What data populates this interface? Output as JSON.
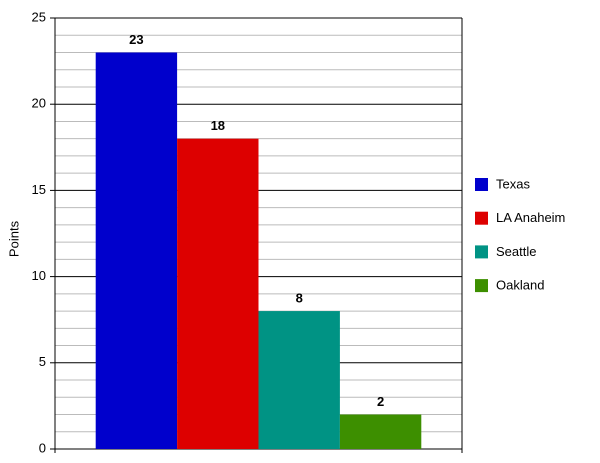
{
  "chart_data": {
    "type": "bar",
    "y_label": "Points",
    "categories": [
      null
    ],
    "series": [
      {
        "name": "Texas",
        "color": "#0000cc",
        "values": [
          23
        ]
      },
      {
        "name": "LA Anaheim",
        "color": "#dd0000",
        "values": [
          18
        ]
      },
      {
        "name": "Seattle",
        "color": "#009384",
        "values": [
          8
        ]
      },
      {
        "name": "Oakland",
        "color": "#3d8f00",
        "values": [
          2
        ]
      }
    ],
    "ylim": [
      0,
      25
    ],
    "yticks": [
      0,
      5,
      10,
      15,
      20,
      25
    ],
    "minor_yticks": [
      1,
      2,
      3,
      4,
      6,
      7,
      8,
      9,
      11,
      12,
      13,
      14,
      16,
      17,
      18,
      19,
      21,
      22,
      23,
      24
    ],
    "grid": true,
    "legend": "right",
    "data_labels": true
  }
}
